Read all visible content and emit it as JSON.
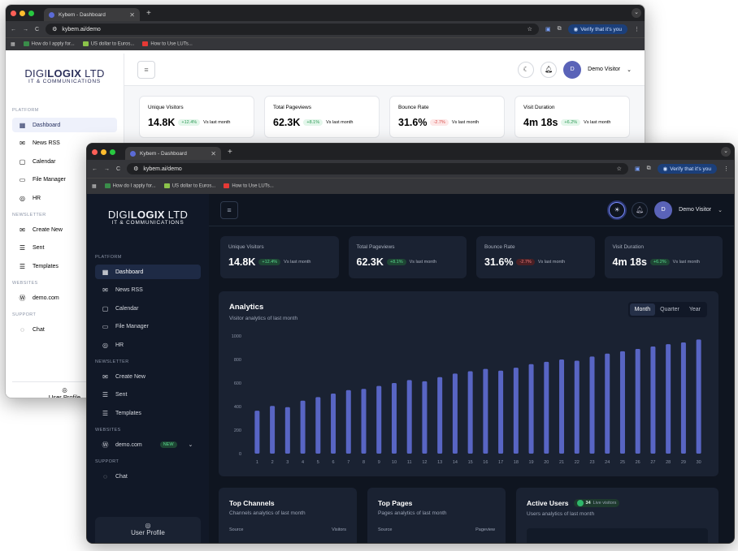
{
  "browser": {
    "tab_title": "Kybem - Dashboard",
    "url": "kybem.ai/demo",
    "verify_label": "Verify that it's you",
    "bookmarks": [
      "How do I apply for...",
      "US dollar to Euros...",
      "How to Use LUTs..."
    ]
  },
  "brand": {
    "name_part1": "DIGI",
    "name_bold": "LOGIX",
    "name_part2": " LTD",
    "tagline": "IT & COMMUNICATIONS"
  },
  "sidebar": {
    "platform_label": "PLATFORM",
    "platform_items": [
      "Dashboard",
      "News RSS",
      "Calendar",
      "File Manager",
      "HR"
    ],
    "newsletter_label": "NEWSLETTER",
    "newsletter_items": [
      "Create New",
      "Sent",
      "Templates"
    ],
    "websites_label": "WEBSITES",
    "website_item": "demo.com",
    "website_badge": "NEW",
    "support_label": "SUPPORT",
    "support_item": "Chat",
    "user_profile": "User Profile"
  },
  "header": {
    "user_initial": "D",
    "user_name": "Demo Visitor"
  },
  "stats": [
    {
      "title": "Unique Visitors",
      "value": "14.8K",
      "change": "+12.4%",
      "trend": "up",
      "note": "Vs last month"
    },
    {
      "title": "Total Pageviews",
      "value": "62.3K",
      "change": "+8.1%",
      "trend": "up",
      "note": "Vs last month"
    },
    {
      "title": "Bounce Rate",
      "value": "31.6%",
      "change": "-2.7%",
      "trend": "down",
      "note": "Vs last month"
    },
    {
      "title": "Visit Duration",
      "value": "4m 18s",
      "change": "+6.2%",
      "trend": "up",
      "note": "Vs last month"
    }
  ],
  "analytics": {
    "title": "Analytics",
    "subtitle": "Visitor analytics of last month",
    "periods": [
      "Month",
      "Quarter",
      "Year"
    ],
    "active_period": "Month"
  },
  "chart_data": {
    "type": "bar",
    "categories": [
      "1",
      "2",
      "3",
      "4",
      "5",
      "6",
      "7",
      "8",
      "9",
      "10",
      "11",
      "12",
      "13",
      "14",
      "15",
      "16",
      "17",
      "18",
      "19",
      "20",
      "21",
      "22",
      "23",
      "24",
      "25",
      "26",
      "27",
      "28",
      "29",
      "30"
    ],
    "values": [
      365,
      405,
      395,
      450,
      480,
      510,
      540,
      550,
      575,
      600,
      625,
      615,
      650,
      680,
      700,
      720,
      705,
      730,
      760,
      780,
      800,
      790,
      825,
      850,
      870,
      890,
      910,
      930,
      945,
      970
    ],
    "ylim": [
      0,
      1000
    ],
    "yticks": [
      "0",
      "200",
      "400",
      "600",
      "800",
      "1000"
    ],
    "color": "#5865c4",
    "grid": false
  },
  "panels": [
    {
      "title": "Top Channels",
      "subtitle": "Channels analytics of last month",
      "col1": "Source",
      "col2": "Visitors"
    },
    {
      "title": "Top Pages",
      "subtitle": "Pages analytics of last month",
      "col1": "Source",
      "col2": "Pageview"
    },
    {
      "title": "Active Users",
      "subtitle": "Users analytics of last month",
      "count": "34",
      "badge_label": "Live visitors"
    }
  ]
}
